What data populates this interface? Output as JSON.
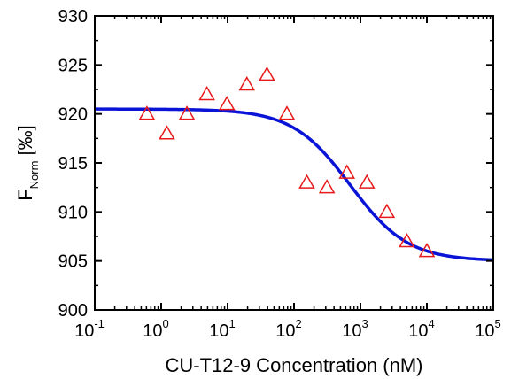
{
  "chart_data": {
    "type": "scatter",
    "xlabel": "CU-T12-9 Concentration (nM)",
    "ylabel": {
      "main": "F",
      "subscript": "Norm",
      "unit": "[‰]"
    },
    "x_scale": "log",
    "xlim": [
      0.1,
      100000
    ],
    "ylim": [
      900,
      930
    ],
    "x_ticks": [
      {
        "base": "10",
        "exp": "-1"
      },
      {
        "base": "10",
        "exp": "0"
      },
      {
        "base": "10",
        "exp": "1"
      },
      {
        "base": "10",
        "exp": "2"
      },
      {
        "base": "10",
        "exp": "3"
      },
      {
        "base": "10",
        "exp": "4"
      },
      {
        "base": "10",
        "exp": "5"
      }
    ],
    "y_ticks": [
      "900",
      "905",
      "910",
      "915",
      "920",
      "925",
      "930"
    ],
    "grid": false,
    "series": [
      {
        "kind": "points",
        "marker": "open-triangle",
        "color": "#e8191a",
        "x": [
          0.61,
          1.22,
          2.44,
          4.88,
          9.77,
          19.5,
          39.1,
          78.1,
          156,
          313,
          625,
          1250,
          2500,
          5000,
          10000
        ],
        "y": [
          920.0,
          918.0,
          920.0,
          922.0,
          921.0,
          923.0,
          924.0,
          920.0,
          913.0,
          912.5,
          914.0,
          913.0,
          910.0,
          907.0,
          906.0
        ]
      },
      {
        "kind": "fit",
        "color": "#0a14d6",
        "top": 920.5,
        "bottom": 905.0,
        "ec50": 700,
        "hill": 1.0
      }
    ]
  }
}
